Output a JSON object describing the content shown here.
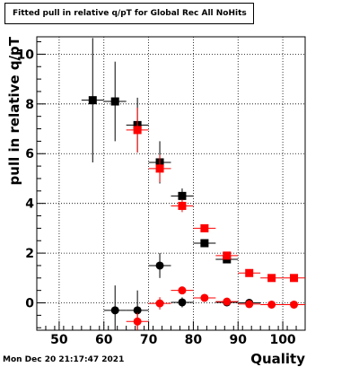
{
  "header": {
    "title": "Fitted pull in relative q/pT for Global Rec All NoHits"
  },
  "footer": {
    "timestamp": "Mon Dec 20 21:17:47 2021"
  },
  "chart_data": {
    "type": "scatter",
    "title": "Fitted pull in relative q/pT for Global Rec All NoHits",
    "xlabel": "Quality",
    "ylabel": "pull in relative q/pT",
    "xlim": [
      45,
      105
    ],
    "ylim": [
      -1.1,
      10.7
    ],
    "xticks": [
      50,
      60,
      70,
      80,
      90,
      100
    ],
    "yticks": [
      0,
      2,
      4,
      6,
      8,
      10
    ],
    "grid": true,
    "series": [
      {
        "marker": "square",
        "color": "#000000",
        "points": [
          {
            "x": 57.5,
            "y": 8.15,
            "ex": 2.5,
            "ey": 2.5
          },
          {
            "x": 62.5,
            "y": 8.1,
            "ex": 2.5,
            "ey": 1.6
          },
          {
            "x": 67.5,
            "y": 7.15,
            "ex": 2.5,
            "ey": 1.1
          },
          {
            "x": 72.5,
            "y": 5.65,
            "ex": 2.5,
            "ey": 0.85
          },
          {
            "x": 77.5,
            "y": 4.3,
            "ex": 2.5,
            "ey": 0.3
          },
          {
            "x": 82.5,
            "y": 2.4,
            "ex": 2.5,
            "ey": 0.15
          },
          {
            "x": 87.5,
            "y": 1.75,
            "ex": 2.5,
            "ey": 0.1
          }
        ]
      },
      {
        "marker": "square",
        "color": "#ff0000",
        "points": [
          {
            "x": 67.5,
            "y": 6.95,
            "ex": 2.5,
            "ey": 0.9
          },
          {
            "x": 72.5,
            "y": 5.4,
            "ex": 2.5,
            "ey": 0.55
          },
          {
            "x": 77.5,
            "y": 3.9,
            "ex": 2.5,
            "ey": 0.25
          },
          {
            "x": 82.5,
            "y": 3.0,
            "ex": 2.5,
            "ey": 0.15
          },
          {
            "x": 87.5,
            "y": 1.9,
            "ex": 2.5,
            "ey": 0.1
          },
          {
            "x": 92.5,
            "y": 1.2,
            "ex": 2.5,
            "ey": 0.08
          },
          {
            "x": 97.5,
            "y": 1.0,
            "ex": 2.5,
            "ey": 0.06
          },
          {
            "x": 102.5,
            "y": 1.0,
            "ex": 2.5,
            "ey": 0.06
          }
        ]
      },
      {
        "marker": "circle",
        "color": "#000000",
        "points": [
          {
            "x": 62.5,
            "y": -0.3,
            "ex": 2.5,
            "ey": 1.0
          },
          {
            "x": 67.5,
            "y": -0.3,
            "ex": 2.5,
            "ey": 0.8
          },
          {
            "x": 72.5,
            "y": 1.5,
            "ex": 2.5,
            "ey": 0.5
          },
          {
            "x": 77.5,
            "y": 0.02,
            "ex": 2.5,
            "ey": 0.2
          },
          {
            "x": 87.5,
            "y": 0.02,
            "ex": 2.5,
            "ey": 0.08
          },
          {
            "x": 92.5,
            "y": 0.0,
            "ex": 2.5,
            "ey": 0.05
          }
        ]
      },
      {
        "marker": "circle",
        "color": "#ff0000",
        "points": [
          {
            "x": 67.5,
            "y": -0.75,
            "ex": 2.5,
            "ey": 0.35
          },
          {
            "x": 72.5,
            "y": -0.02,
            "ex": 2.5,
            "ey": 0.25
          },
          {
            "x": 77.5,
            "y": 0.5,
            "ex": 2.5,
            "ey": 0.15
          },
          {
            "x": 82.5,
            "y": 0.2,
            "ex": 2.5,
            "ey": 0.08
          },
          {
            "x": 87.5,
            "y": 0.05,
            "ex": 2.5,
            "ey": 0.05
          },
          {
            "x": 92.5,
            "y": -0.05,
            "ex": 2.5,
            "ey": 0.04
          },
          {
            "x": 97.5,
            "y": -0.07,
            "ex": 2.5,
            "ey": 0.03
          },
          {
            "x": 102.5,
            "y": -0.07,
            "ex": 2.5,
            "ey": 0.03
          }
        ]
      }
    ]
  }
}
